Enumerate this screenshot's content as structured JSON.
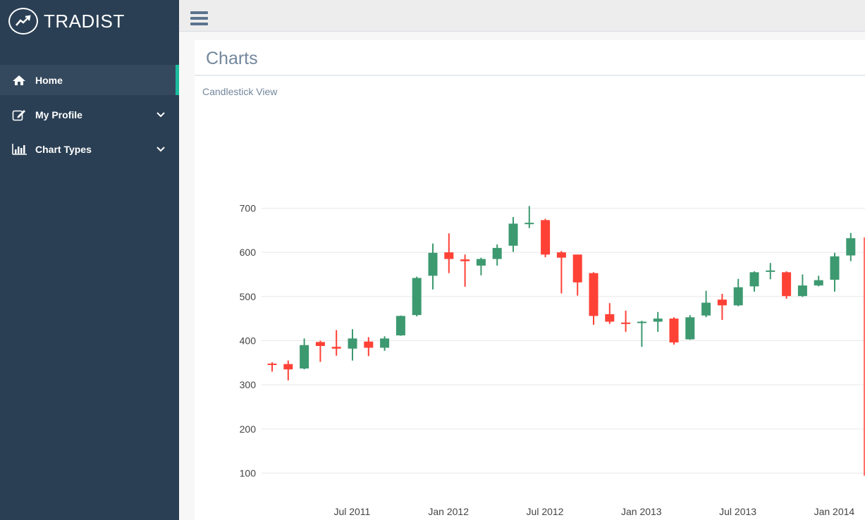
{
  "app": {
    "name": "TRADIST",
    "logo_icon": "trending-up-icon"
  },
  "sidebar": {
    "items": [
      {
        "label": "Home",
        "icon": "home-icon",
        "active": true
      },
      {
        "label": "My Profile",
        "icon": "edit-icon",
        "expandable": true
      },
      {
        "label": "Chart Types",
        "icon": "bar-chart-icon",
        "expandable": true
      }
    ]
  },
  "topbar": {
    "menu_icon": "hamburger-menu-icon"
  },
  "page": {
    "title": "Charts",
    "subtitle": "Candlestick View"
  },
  "colors": {
    "sidebar": "#2a3f54",
    "accent": "#1abb9c",
    "increasing": "#3d9970",
    "decreasing": "#ff4136"
  },
  "chart_data": {
    "type": "candlestick",
    "y_ticks": [
      100,
      200,
      300,
      400,
      500,
      600,
      700
    ],
    "x_ticks": [
      "Jul 2011",
      "Jan 2012",
      "Jul 2012",
      "Jan 2013",
      "Jul 2013",
      "Jan 2014"
    ],
    "grid": true,
    "series": [
      {
        "date": "2011-04",
        "open": 348,
        "high": 351,
        "low": 330,
        "close": 346
      },
      {
        "date": "2011-05",
        "open": 347,
        "high": 355,
        "low": 310,
        "close": 335
      },
      {
        "date": "2011-06",
        "open": 337,
        "high": 405,
        "low": 335,
        "close": 390
      },
      {
        "date": "2011-07",
        "open": 397,
        "high": 400,
        "low": 352,
        "close": 388
      },
      {
        "date": "2011-08",
        "open": 386,
        "high": 424,
        "low": 366,
        "close": 382
      },
      {
        "date": "2011-09",
        "open": 382,
        "high": 426,
        "low": 355,
        "close": 405
      },
      {
        "date": "2011-10",
        "open": 398,
        "high": 408,
        "low": 365,
        "close": 384
      },
      {
        "date": "2011-11",
        "open": 384,
        "high": 410,
        "low": 377,
        "close": 405
      },
      {
        "date": "2011-12",
        "open": 412,
        "high": 457,
        "low": 411,
        "close": 456
      },
      {
        "date": "2012-01",
        "open": 458,
        "high": 545,
        "low": 455,
        "close": 542
      },
      {
        "date": "2012-02",
        "open": 547,
        "high": 620,
        "low": 516,
        "close": 599
      },
      {
        "date": "2012-03",
        "open": 600,
        "high": 643,
        "low": 553,
        "close": 585
      },
      {
        "date": "2012-04",
        "open": 584,
        "high": 595,
        "low": 522,
        "close": 580
      },
      {
        "date": "2012-05",
        "open": 570,
        "high": 588,
        "low": 548,
        "close": 585
      },
      {
        "date": "2012-06",
        "open": 585,
        "high": 618,
        "low": 570,
        "close": 610
      },
      {
        "date": "2012-07",
        "open": 615,
        "high": 680,
        "low": 601,
        "close": 665
      },
      {
        "date": "2012-08",
        "open": 665,
        "high": 705,
        "low": 655,
        "close": 667
      },
      {
        "date": "2012-09",
        "open": 673,
        "high": 676,
        "low": 589,
        "close": 595
      },
      {
        "date": "2012-10",
        "open": 600,
        "high": 603,
        "low": 507,
        "close": 588
      },
      {
        "date": "2012-11",
        "open": 595,
        "high": 595,
        "low": 502,
        "close": 532
      },
      {
        "date": "2012-12",
        "open": 553,
        "high": 555,
        "low": 436,
        "close": 456
      },
      {
        "date": "2013-01",
        "open": 460,
        "high": 485,
        "low": 438,
        "close": 443
      },
      {
        "date": "2013-02",
        "open": 441,
        "high": 468,
        "low": 420,
        "close": 439
      },
      {
        "date": "2013-03",
        "open": 442,
        "high": 445,
        "low": 386,
        "close": 443
      },
      {
        "date": "2013-04",
        "open": 443,
        "high": 465,
        "low": 420,
        "close": 450
      },
      {
        "date": "2013-05",
        "open": 450,
        "high": 453,
        "low": 391,
        "close": 396
      },
      {
        "date": "2013-06",
        "open": 403,
        "high": 458,
        "low": 402,
        "close": 453
      },
      {
        "date": "2013-07",
        "open": 457,
        "high": 513,
        "low": 453,
        "close": 486
      },
      {
        "date": "2013-08",
        "open": 493,
        "high": 506,
        "low": 447,
        "close": 480
      },
      {
        "date": "2013-09",
        "open": 480,
        "high": 540,
        "low": 478,
        "close": 521
      },
      {
        "date": "2013-10",
        "open": 523,
        "high": 557,
        "low": 511,
        "close": 555
      },
      {
        "date": "2013-11",
        "open": 558,
        "high": 576,
        "low": 539,
        "close": 559
      },
      {
        "date": "2013-12",
        "open": 555,
        "high": 557,
        "low": 495,
        "close": 501
      },
      {
        "date": "2014-01",
        "open": 501,
        "high": 550,
        "low": 499,
        "close": 525
      },
      {
        "date": "2014-02",
        "open": 525,
        "high": 547,
        "low": 523,
        "close": 537
      },
      {
        "date": "2014-03",
        "open": 538,
        "high": 599,
        "low": 511,
        "close": 591
      },
      {
        "date": "2014-04",
        "open": 593,
        "high": 644,
        "low": 580,
        "close": 632
      }
    ]
  }
}
